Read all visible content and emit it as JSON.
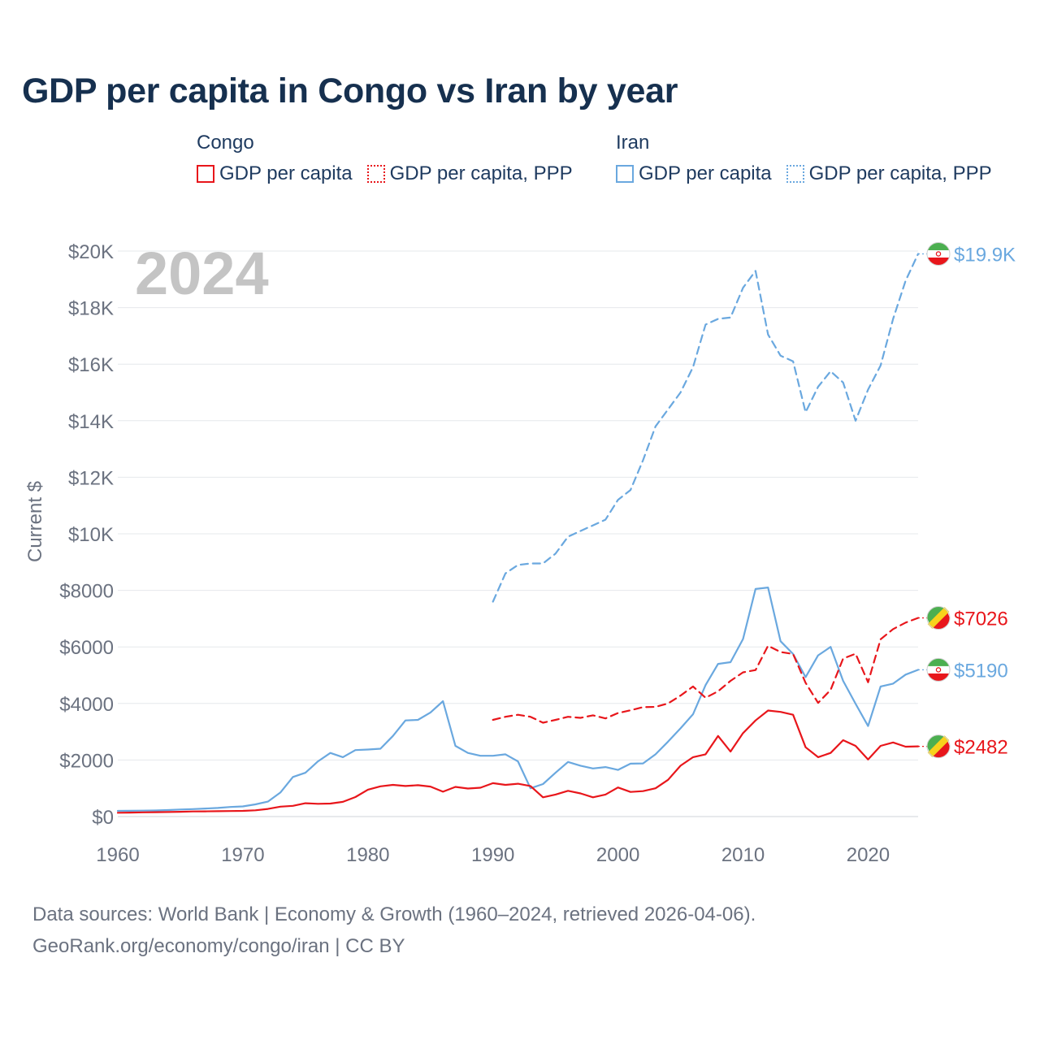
{
  "title": "GDP per capita in Congo vs Iran by year",
  "legend": {
    "groups": [
      {
        "name": "Congo",
        "items": [
          {
            "label": "GDP per capita",
            "style": "solid",
            "color": "#e8161b"
          },
          {
            "label": "GDP per capita, PPP",
            "style": "dotted",
            "color": "#e8161b"
          }
        ]
      },
      {
        "name": "Iran",
        "items": [
          {
            "label": "GDP per capita",
            "style": "solid",
            "color": "#6aa8df"
          },
          {
            "label": "GDP per capita, PPP",
            "style": "dotted",
            "color": "#6aa8df"
          }
        ]
      }
    ]
  },
  "year_label": "2024",
  "footer": {
    "line1": "Data sources: World Bank | Economy & Growth (1960–2024, retrieved 2026-04-06).",
    "line2": "GeoRank.org/economy/congo/iran | CC BY"
  },
  "chart_data": {
    "type": "line",
    "title": "GDP per capita in Congo vs Iran by year",
    "xlabel": "",
    "ylabel": "Current $",
    "xlim": [
      1960,
      2024
    ],
    "ylim": [
      0,
      20000
    ],
    "x_ticks": [
      1960,
      1970,
      1980,
      1990,
      2000,
      2010,
      2020
    ],
    "x_tick_labels": [
      "1960",
      "1970",
      "1980",
      "1990",
      "2000",
      "2010",
      "2020"
    ],
    "y_ticks": [
      0,
      2000,
      4000,
      6000,
      8000,
      10000,
      12000,
      14000,
      16000,
      18000,
      20000
    ],
    "y_tick_labels": [
      "$0",
      "$2000",
      "$4000",
      "$6000",
      "$8000",
      "$10K",
      "$12K",
      "$14K",
      "$16K",
      "$18K",
      "$20K"
    ],
    "grid": true,
    "series": [
      {
        "name": "Iran GDP per capita, PPP",
        "country": "Iran",
        "color": "#6aa8df",
        "dash": "dashed",
        "end_label": "$19.9K",
        "x": [
          1990,
          1991,
          1992,
          1993,
          1994,
          1995,
          1996,
          1997,
          1998,
          1999,
          2000,
          2001,
          2002,
          2003,
          2004,
          2005,
          2006,
          2007,
          2008,
          2009,
          2010,
          2011,
          2012,
          2013,
          2014,
          2015,
          2016,
          2017,
          2018,
          2019,
          2020,
          2021,
          2022,
          2023,
          2024
        ],
        "values": [
          7600,
          8600,
          8900,
          8950,
          8950,
          9300,
          9900,
          10100,
          10300,
          10500,
          11200,
          11550,
          12600,
          13800,
          14400,
          15000,
          15900,
          17400,
          17600,
          17650,
          18700,
          19300,
          17050,
          16300,
          16100,
          14300,
          15200,
          15750,
          15350,
          14000,
          15100,
          15950,
          17600,
          18950,
          19900
        ]
      },
      {
        "name": "Iran GDP per capita",
        "country": "Iran",
        "color": "#6aa8df",
        "dash": "solid",
        "end_label": "$5190",
        "x": [
          1960,
          1961,
          1962,
          1963,
          1964,
          1965,
          1966,
          1967,
          1968,
          1969,
          1970,
          1971,
          1972,
          1973,
          1974,
          1975,
          1976,
          1977,
          1978,
          1979,
          1980,
          1981,
          1982,
          1983,
          1984,
          1985,
          1986,
          1987,
          1988,
          1989,
          1990,
          1991,
          1992,
          1993,
          1994,
          1995,
          1996,
          1997,
          1998,
          1999,
          2000,
          2001,
          2002,
          2003,
          2004,
          2005,
          2006,
          2007,
          2008,
          2009,
          2010,
          2011,
          2012,
          2013,
          2014,
          2015,
          2016,
          2017,
          2018,
          2019,
          2020,
          2021,
          2022,
          2023,
          2024
        ],
        "values": [
          200,
          205,
          210,
          215,
          230,
          250,
          265,
          285,
          305,
          340,
          360,
          430,
          530,
          850,
          1400,
          1550,
          1950,
          2250,
          2100,
          2350,
          2370,
          2400,
          2850,
          3400,
          3420,
          3680,
          4080,
          2500,
          2250,
          2150,
          2150,
          2200,
          1950,
          1000,
          1150,
          1550,
          1930,
          1800,
          1700,
          1750,
          1650,
          1870,
          1880,
          2200,
          2650,
          3120,
          3620,
          4650,
          5400,
          5460,
          6280,
          8050,
          8100,
          6200,
          5750,
          4930,
          5700,
          6000,
          4800,
          3990,
          3200,
          4600,
          4700,
          5020,
          5190
        ]
      },
      {
        "name": "Congo GDP per capita, PPP",
        "country": "Congo",
        "color": "#e8161b",
        "dash": "dashed",
        "end_label": "$7026",
        "x": [
          1990,
          1991,
          1992,
          1993,
          1994,
          1995,
          1996,
          1997,
          1998,
          1999,
          2000,
          2001,
          2002,
          2003,
          2004,
          2005,
          2006,
          2007,
          2008,
          2009,
          2010,
          2011,
          2012,
          2013,
          2014,
          2015,
          2016,
          2017,
          2018,
          2019,
          2020,
          2021,
          2022,
          2023,
          2024
        ],
        "values": [
          3420,
          3530,
          3600,
          3530,
          3320,
          3420,
          3530,
          3490,
          3580,
          3470,
          3660,
          3760,
          3870,
          3880,
          4000,
          4280,
          4600,
          4200,
          4430,
          4800,
          5100,
          5180,
          6040,
          5820,
          5750,
          4730,
          4020,
          4480,
          5590,
          5760,
          4750,
          6270,
          6630,
          6860,
          7026
        ]
      },
      {
        "name": "Congo GDP per capita",
        "country": "Congo",
        "color": "#e8161b",
        "dash": "solid",
        "end_label": "$2482",
        "x": [
          1960,
          1961,
          1962,
          1963,
          1964,
          1965,
          1966,
          1967,
          1968,
          1969,
          1970,
          1971,
          1972,
          1973,
          1974,
          1975,
          1976,
          1977,
          1978,
          1979,
          1980,
          1981,
          1982,
          1983,
          1984,
          1985,
          1986,
          1987,
          1988,
          1989,
          1990,
          1991,
          1992,
          1993,
          1994,
          1995,
          1996,
          1997,
          1998,
          1999,
          2000,
          2001,
          2002,
          2003,
          2004,
          2005,
          2006,
          2007,
          2008,
          2009,
          2010,
          2011,
          2012,
          2013,
          2014,
          2015,
          2016,
          2017,
          2018,
          2019,
          2020,
          2021,
          2022,
          2023,
          2024
        ],
        "values": [
          135,
          140,
          150,
          155,
          160,
          170,
          180,
          185,
          190,
          195,
          200,
          220,
          270,
          350,
          380,
          470,
          450,
          460,
          520,
          690,
          950,
          1070,
          1120,
          1080,
          1110,
          1060,
          880,
          1050,
          990,
          1020,
          1180,
          1120,
          1160,
          1080,
          680,
          780,
          910,
          820,
          680,
          780,
          1030,
          870,
          900,
          1000,
          1300,
          1800,
          2100,
          2200,
          2850,
          2300,
          2950,
          3400,
          3750,
          3700,
          3600,
          2450,
          2100,
          2250,
          2700,
          2500,
          2020,
          2500,
          2620,
          2470,
          2482
        ]
      }
    ]
  }
}
